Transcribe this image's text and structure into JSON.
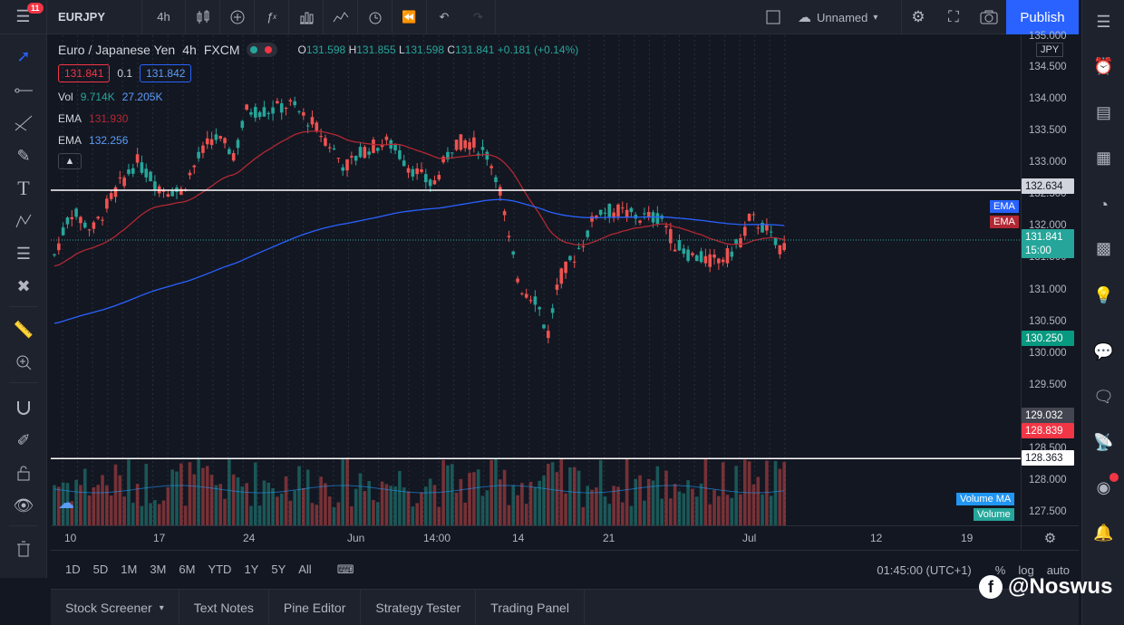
{
  "header": {
    "menu_badge": "11",
    "symbol": "EURJPY",
    "interval": "4h",
    "layout_name": "Unnamed",
    "publish_label": "Publish",
    "icons": [
      "candles-icon",
      "add-compare-icon",
      "indicators-icon",
      "templates-icon",
      "alert-icon",
      "replay-icon",
      "undo-icon",
      "redo-icon"
    ]
  },
  "legend": {
    "name": "Euro / Japanese Yen",
    "interval": "4h",
    "exchange": "FXCM",
    "o_key": "O",
    "o_val": "131.598",
    "h_key": "H",
    "h_val": "131.855",
    "l_key": "L",
    "l_val": "131.598",
    "c_key": "C",
    "c_val": "131.841",
    "change": "+0.181 (+0.14%)",
    "bid": "131.841",
    "spread": "0.1",
    "ask": "131.842",
    "indicators": [
      {
        "name": "Vol",
        "v1": "9.714K",
        "v1_color": "#26a69a",
        "v2": "27.205K",
        "v2_color": "#5b9cf6"
      },
      {
        "name": "EMA",
        "v1": "131.930",
        "v1_color": "#b22833"
      },
      {
        "name": "EMA",
        "v1": "132.256",
        "v1_color": "#5b9cf6"
      }
    ]
  },
  "price_axis": {
    "currency": "JPY",
    "labels": [
      "135.000",
      "134.500",
      "134.000",
      "133.500",
      "133.000",
      "132.500",
      "132.000",
      "131.500",
      "131.000",
      "130.500",
      "130.000",
      "129.500",
      "128.500",
      "128.000",
      "127.500"
    ],
    "tags": [
      {
        "text": "132.634",
        "color": "#ffffff",
        "bg": "#d1d4dc",
        "fg": "#131722"
      },
      {
        "text": "131.841",
        "bg": "#26a69a",
        "fg": "#ffffff"
      },
      {
        "text": "15:00",
        "bg": "#26a69a",
        "fg": "#ffffff"
      },
      {
        "text": "130.250",
        "bg": "#089981",
        "fg": "#ffffff"
      },
      {
        "text": "129.032",
        "bg": "#434651",
        "fg": "#ffffff"
      },
      {
        "text": "128.839",
        "bg": "#f23645",
        "fg": "#ffffff"
      },
      {
        "text": "128.363",
        "bg": "#ffffff",
        "fg": "#131722"
      }
    ],
    "side_tags": [
      {
        "text": "EMA",
        "bg": "#2962ff"
      },
      {
        "text": "EMA",
        "bg": "#b22833"
      },
      {
        "text": "Volume MA",
        "bg": "#2196f3"
      },
      {
        "text": "Volume",
        "bg": "#26a69a"
      }
    ]
  },
  "time_axis": {
    "labels": [
      "10",
      "17",
      "24",
      "Jun",
      "14:00",
      "14",
      "21",
      "Jul",
      "12",
      "19"
    ]
  },
  "range_bar": {
    "ranges": [
      "1D",
      "5D",
      "1M",
      "3M",
      "6M",
      "YTD",
      "1Y",
      "5Y",
      "All"
    ],
    "clock": "01:45:00 (UTC+1)",
    "pct": "%",
    "log": "log",
    "auto": "auto"
  },
  "panels": [
    "Stock Screener",
    "Text Notes",
    "Pine Editor",
    "Strategy Tester",
    "Trading Panel"
  ],
  "watermark": "@Noswus",
  "chart_data": {
    "type": "candlestick",
    "symbol": "EURJPY",
    "price_range": [
      127.3,
      135.1
    ],
    "horizontal_lines": [
      132.634,
      128.363
    ],
    "last_close": 131.841,
    "series_colors": {
      "up": "#26a69a",
      "down": "#ef5350",
      "ema_fast": "#b22833",
      "ema_slow": "#2962ff"
    }
  }
}
